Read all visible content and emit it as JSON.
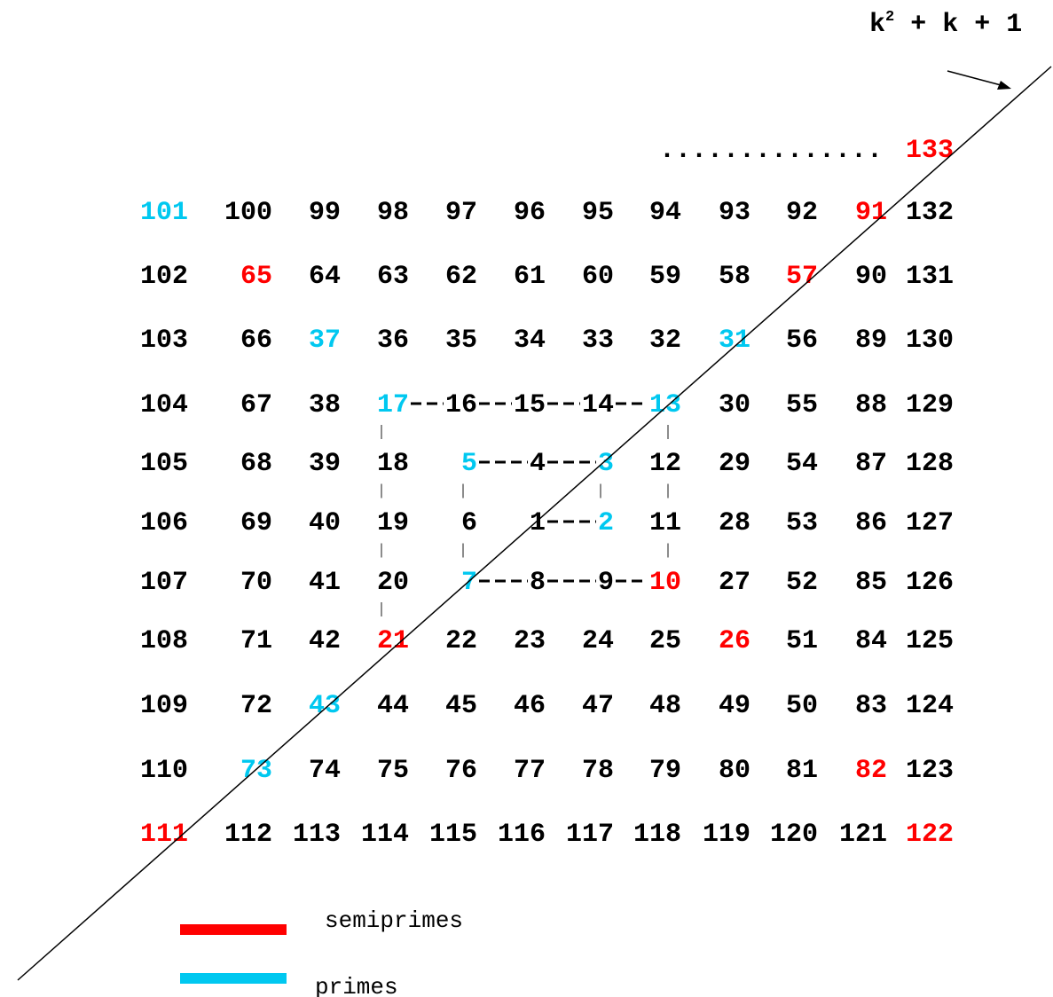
{
  "formula": {
    "base": "k",
    "exponent": "2",
    "rest": " + k + 1"
  },
  "top_row": {
    "dots": "..............",
    "last": {
      "text": "133",
      "color": "#ff0000"
    }
  },
  "rows": [
    [
      {
        "text": "101",
        "color": "#00c8f0"
      },
      "100",
      "99",
      "98",
      "97",
      "96",
      "95",
      "94",
      "93",
      "92",
      {
        "text": "91",
        "color": "#ff0000"
      },
      "132"
    ],
    [
      "102",
      {
        "text": "65",
        "color": "#ff0000"
      },
      "64",
      "63",
      "62",
      "61",
      "60",
      "59",
      "58",
      {
        "text": "57",
        "color": "#ff0000"
      },
      "90",
      "131"
    ],
    [
      "103",
      "66",
      {
        "text": "37",
        "color": "#00c8f0"
      },
      "36",
      "35",
      "34",
      "33",
      "32",
      {
        "text": "31",
        "color": "#00c8f0"
      },
      "56",
      "89",
      "130"
    ],
    [
      "104",
      "67",
      "38",
      {
        "text": "17",
        "color": "#00c8f0"
      },
      "16",
      "15",
      "14",
      {
        "text": "13",
        "color": "#00c8f0"
      },
      "30",
      "55",
      "88",
      "129"
    ],
    [
      "105",
      "68",
      "39",
      "18",
      {
        "text": "5",
        "color": "#00c8f0"
      },
      "4",
      {
        "text": "3",
        "color": "#00c8f0"
      },
      "12",
      "29",
      "54",
      "87",
      "128"
    ],
    [
      "106",
      "69",
      "40",
      "19",
      "6",
      "1",
      {
        "text": "2",
        "color": "#00c8f0"
      },
      "11",
      "28",
      "53",
      "86",
      "127"
    ],
    [
      "107",
      "70",
      "41",
      "20",
      {
        "text": "7",
        "color": "#00c8f0"
      },
      "8",
      "9",
      {
        "text": "10",
        "color": "#ff0000"
      },
      "27",
      "52",
      "85",
      "126"
    ],
    [
      "108",
      "71",
      "42",
      {
        "text": "21",
        "color": "#ff0000"
      },
      "22",
      "23",
      "24",
      "25",
      {
        "text": "26",
        "color": "#ff0000"
      },
      "51",
      "84",
      "125"
    ],
    [
      "109",
      "72",
      {
        "text": "43",
        "color": "#00c8f0"
      },
      "44",
      "45",
      "46",
      "47",
      "48",
      "49",
      "50",
      "83",
      "124"
    ],
    [
      "110",
      {
        "text": "73",
        "color": "#00c8f0"
      },
      "74",
      "75",
      "76",
      "77",
      "78",
      "79",
      "80",
      "81",
      {
        "text": "82",
        "color": "#ff0000"
      },
      "123"
    ],
    [
      {
        "text": "111",
        "color": "#ff0000"
      },
      "112",
      "113",
      "114",
      "115",
      "116",
      "117",
      "118",
      "119",
      "120",
      "121",
      {
        "text": "122",
        "color": "#ff0000"
      }
    ]
  ],
  "legend": [
    {
      "label": "semiprimes",
      "color": "#ff0000"
    },
    {
      "label": "primes",
      "color": "#00c8f0"
    }
  ]
}
